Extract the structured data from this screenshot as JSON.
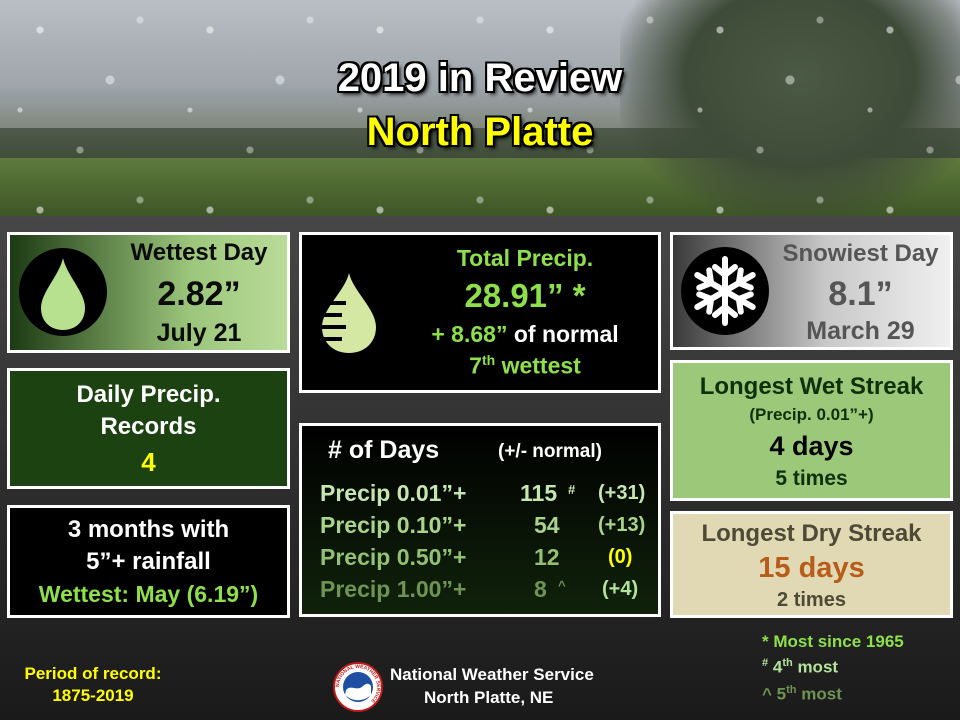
{
  "header": {
    "title": "2019 in Review",
    "subtitle": "North Platte"
  },
  "wettest_day": {
    "label": "Wettest Day",
    "value": "2.82”",
    "date": "July 21"
  },
  "daily_records": {
    "line1": "Daily Precip.",
    "line2": "Records",
    "value": "4"
  },
  "months_rain": {
    "line1": "3 months with",
    "line2": "5”+ rainfall",
    "line3": "Wettest: May (6.19”)"
  },
  "total_precip": {
    "label": "Total Precip.",
    "value": "28.91” *",
    "departure_value": "+ 8.68”",
    "departure_text": " of normal",
    "rank_num": "7",
    "rank_suffix": "th",
    "rank_text": " wettest"
  },
  "days_table": {
    "header": "# of Days",
    "header_note": "(+/- normal)",
    "rows": [
      {
        "label": "Precip 0.01”+",
        "count": "115",
        "mark": "#",
        "diff": "(+31)",
        "color": "#c6e6b0"
      },
      {
        "label": "Precip 0.10”+",
        "count": "54",
        "mark": "",
        "diff": "(+13)",
        "color": "#a9d48a"
      },
      {
        "label": "Precip 0.50”+",
        "count": "12",
        "mark": "",
        "diff": "(0)",
        "color": "#93c073"
      },
      {
        "label": "Precip 1.00”+",
        "count": "8",
        "mark": "^",
        "diff": "(+4)",
        "color": "#6f9352"
      }
    ]
  },
  "snowiest_day": {
    "label": "Snowiest Day",
    "value": "8.1”",
    "date": "March 29"
  },
  "wet_streak": {
    "label": "Longest Wet Streak",
    "note": "(Precip. 0.01”+)",
    "value": "4 days",
    "times": "5 times"
  },
  "dry_streak": {
    "label": "Longest Dry Streak",
    "value": "15 days",
    "times": "2 times"
  },
  "footnotes": {
    "star": "* Most since 1965",
    "hash_mark": "#",
    "hash_num": "4",
    "hash_suffix": "th",
    "hash_text": " most",
    "caret_mark": "^",
    "caret_num": "5",
    "caret_suffix": "th",
    "caret_text": " most"
  },
  "period": {
    "line1": "Period of record:",
    "line2": "1875-2019"
  },
  "nws": {
    "name": "National Weather Service",
    "office": "North Platte, NE",
    "logo_text": "NATIONAL WEATHER SERVICE"
  },
  "colors": {
    "title_yellow": "#ffff00",
    "green_text": "#8ee04a",
    "light_green_text": "#b3e29a",
    "dry_streak_value": "#b85c1a",
    "footer_yellow": "#ffff00"
  },
  "icons": [
    "raindrop-icon",
    "graduated-raindrop-icon",
    "snowflake-icon",
    "nws-logo-icon"
  ]
}
